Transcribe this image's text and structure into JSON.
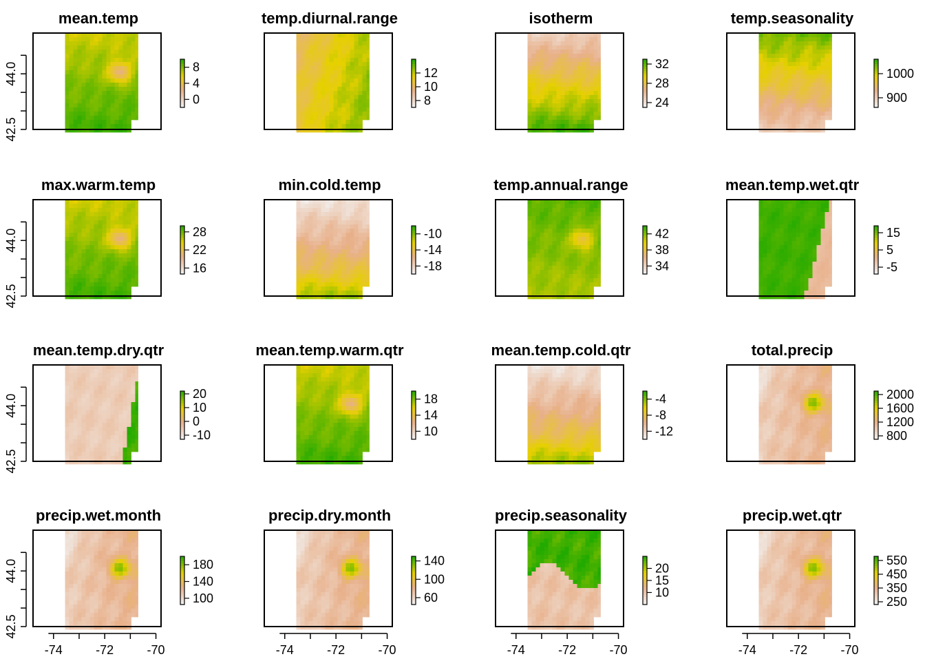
{
  "chart_data": {
    "type": "heatmap",
    "description_panels": 16,
    "x_axis": {
      "ticks": [
        -74,
        -72,
        -70
      ],
      "tick_labels": [
        "-74",
        "-72",
        "-70"
      ],
      "range": [
        -74.8,
        -69.8
      ]
    },
    "y_axis": {
      "ticks": [
        42.5,
        44.0
      ],
      "tick_labels": [
        "42.5",
        "44.0"
      ],
      "minor_ticks": [
        43.0,
        43.5,
        44.5
      ],
      "range": [
        42.5,
        45.1
      ]
    },
    "raster_x_range": [
      -73.55,
      -70.7
    ],
    "colors": {
      "low": "#f2f2f2",
      "mid_low": "#e8b08a",
      "mid": "#e6d000",
      "high": "#22aa00"
    },
    "panels": [
      {
        "name": "mean.temp",
        "legend_ticks": [
          "8",
          "4",
          "0"
        ],
        "legend_values": [
          8,
          4,
          0
        ],
        "legend_range": [
          -2,
          10
        ],
        "pattern": "north-low"
      },
      {
        "name": "temp.diurnal.range",
        "legend_ticks": [
          "12",
          "10",
          "8"
        ],
        "legend_values": [
          12,
          10,
          8
        ],
        "legend_range": [
          7,
          14
        ],
        "pattern": "west-mid"
      },
      {
        "name": "isotherm",
        "legend_ticks": [
          "32",
          "28",
          "24"
        ],
        "legend_values": [
          32,
          28,
          24
        ],
        "legend_range": [
          23,
          33
        ],
        "pattern": "north-low-strong"
      },
      {
        "name": "temp.seasonality",
        "legend_ticks": [
          "1000",
          "900"
        ],
        "legend_values": [
          1000,
          900
        ],
        "legend_range": [
          860,
          1060
        ],
        "pattern": "north-high"
      },
      {
        "name": "max.warm.temp",
        "legend_ticks": [
          "28",
          "22",
          "16"
        ],
        "legend_values": [
          28,
          22,
          16
        ],
        "legend_range": [
          14,
          30
        ],
        "pattern": "north-low"
      },
      {
        "name": "min.cold.temp",
        "legend_ticks": [
          "-10",
          "-14",
          "-18"
        ],
        "legend_values": [
          -10,
          -14,
          -18
        ],
        "legend_range": [
          -20,
          -8
        ],
        "pattern": "south-high"
      },
      {
        "name": "temp.annual.range",
        "legend_ticks": [
          "42",
          "38",
          "34"
        ],
        "legend_values": [
          42,
          38,
          34
        ],
        "legend_range": [
          32,
          44
        ],
        "pattern": "north-high-green"
      },
      {
        "name": "mean.temp.wet.qtr",
        "legend_ticks": [
          "15",
          "5",
          "-5"
        ],
        "legend_values": [
          15,
          5,
          -5
        ],
        "legend_range": [
          -9,
          19
        ],
        "pattern": "east-low"
      },
      {
        "name": "mean.temp.dry.qtr",
        "legend_ticks": [
          "20",
          "10",
          "0",
          "-10"
        ],
        "legend_values": [
          20,
          10,
          0,
          -10
        ],
        "legend_range": [
          -13,
          22
        ],
        "pattern": "east-high"
      },
      {
        "name": "mean.temp.warm.qtr",
        "legend_ticks": [
          "18",
          "14",
          "10"
        ],
        "legend_values": [
          18,
          14,
          10
        ],
        "legend_range": [
          8,
          20
        ],
        "pattern": "north-low"
      },
      {
        "name": "mean.temp.cold.qtr",
        "legend_ticks": [
          "-4",
          "-8",
          "-12"
        ],
        "legend_values": [
          -4,
          -8,
          -12
        ],
        "legend_range": [
          -14,
          -2
        ],
        "pattern": "south-high"
      },
      {
        "name": "total.precip",
        "legend_ticks": [
          "2000",
          "1600",
          "1200",
          "800"
        ],
        "legend_values": [
          2000,
          1600,
          1200,
          800
        ],
        "legend_range": [
          700,
          2100
        ],
        "pattern": "precip"
      },
      {
        "name": "precip.wet.month",
        "legend_ticks": [
          "180",
          "140",
          "100"
        ],
        "legend_values": [
          180,
          140,
          100
        ],
        "legend_range": [
          85,
          200
        ],
        "pattern": "precip"
      },
      {
        "name": "precip.dry.month",
        "legend_ticks": [
          "140",
          "100",
          "60"
        ],
        "legend_values": [
          140,
          100,
          60
        ],
        "legend_range": [
          45,
          150
        ],
        "pattern": "precip"
      },
      {
        "name": "precip.seasonality",
        "legend_ticks": [
          "20",
          "15",
          "10"
        ],
        "legend_values": [
          20,
          15,
          10
        ],
        "legend_range": [
          5,
          25
        ],
        "pattern": "seasonality"
      },
      {
        "name": "precip.wet.qtr",
        "legend_ticks": [
          "550",
          "450",
          "350",
          "250"
        ],
        "legend_values": [
          550,
          450,
          350,
          250
        ],
        "legend_range": [
          230,
          580
        ],
        "pattern": "precip"
      }
    ]
  }
}
